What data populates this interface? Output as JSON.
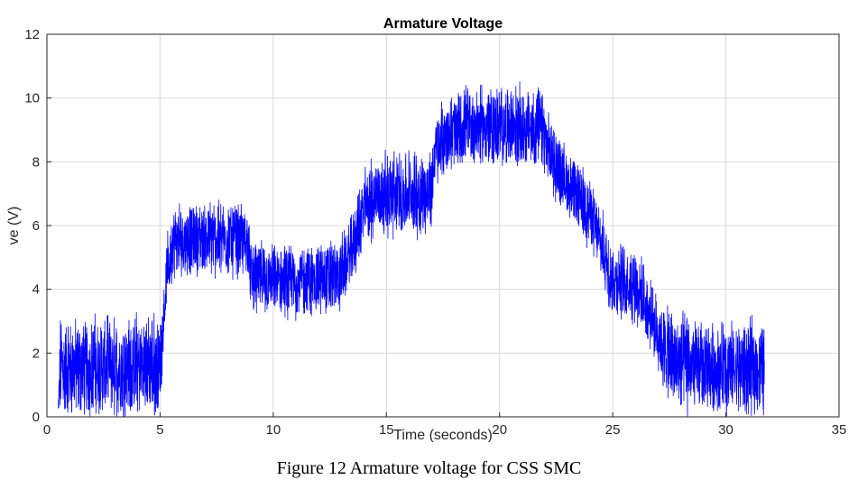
{
  "figure": {
    "caption": "Figure 12 Armature voltage for CSS SMC"
  },
  "chart_data": {
    "type": "line",
    "title": "Armature Voltage",
    "xlabel": "Time (seconds)",
    "ylabel": "ve (V)",
    "xlim": [
      0,
      35
    ],
    "ylim": [
      0,
      12
    ],
    "xticks": [
      0,
      5,
      10,
      15,
      20,
      25,
      30,
      35
    ],
    "yticks": [
      0,
      2,
      4,
      6,
      8,
      10,
      12
    ],
    "grid": true,
    "legend": "none",
    "series_color": "#0000ff",
    "envelope": {
      "t": [
        0.5,
        0.6,
        0.8,
        5.0,
        5.1,
        5.3,
        5.6,
        6.0,
        7.0,
        8.0,
        8.9,
        9.0,
        9.5,
        10.5,
        12.0,
        12.9,
        13.2,
        13.6,
        14.0,
        14.6,
        16.0,
        17.0,
        17.1,
        17.6,
        18.5,
        20.0,
        21.9,
        22.1,
        23.0,
        24.0,
        25.0,
        26.0,
        27.0,
        27.5,
        29.0,
        31.7
      ],
      "center": [
        0.2,
        1.6,
        1.5,
        1.6,
        2.6,
        4.5,
        5.5,
        5.5,
        5.6,
        5.6,
        5.5,
        4.4,
        4.3,
        4.2,
        4.3,
        4.4,
        4.8,
        5.5,
        6.5,
        7.0,
        7.0,
        7.0,
        8.2,
        8.8,
        9.1,
        9.1,
        9.0,
        8.4,
        7.3,
        6.4,
        4.3,
        4.2,
        2.6,
        1.8,
        1.5,
        1.5
      ],
      "amplitude": [
        0.3,
        1.6,
        1.5,
        1.5,
        1.0,
        1.0,
        1.1,
        1.1,
        1.1,
        1.1,
        1.1,
        1.1,
        1.1,
        1.1,
        1.1,
        1.1,
        1.0,
        1.0,
        1.3,
        1.2,
        1.3,
        1.2,
        1.1,
        1.2,
        1.2,
        1.2,
        1.2,
        1.1,
        1.0,
        1.0,
        1.1,
        1.1,
        1.0,
        1.5,
        1.4,
        1.4
      ]
    }
  }
}
